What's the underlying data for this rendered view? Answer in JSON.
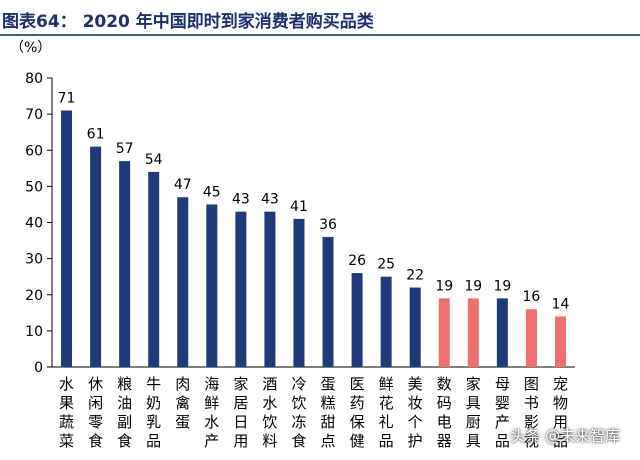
{
  "title": "图表64：  2020 年中国即时到家消费者购买品类",
  "watermark": "头条 @未来智库",
  "chart_data": {
    "type": "bar",
    "ylabel": "（%）",
    "ylim": [
      0,
      80
    ],
    "yticks": [
      0,
      10,
      20,
      30,
      40,
      50,
      60,
      70,
      80
    ],
    "grid": false,
    "legend": "none",
    "categories": [
      "水果蔬菜",
      "休闲零食",
      "粮油副食",
      "牛奶乳品",
      "肉禽蛋",
      "海鲜水产",
      "家居日用",
      "酒水饮料",
      "冷饮冻食",
      "蛋糕甜点",
      "医药保健",
      "鲜花礼品",
      "美妆个护",
      "数码电器",
      "家具厨具",
      "母婴产品",
      "图书影视",
      "宠物用品"
    ],
    "values": [
      71,
      61,
      57,
      54,
      47,
      45,
      43,
      43,
      41,
      36,
      26,
      25,
      22,
      19,
      19,
      19,
      16,
      14
    ],
    "bar_colors": [
      "#1f3a7a",
      "#1f3a7a",
      "#1f3a7a",
      "#1f3a7a",
      "#1f3a7a",
      "#1f3a7a",
      "#1f3a7a",
      "#1f3a7a",
      "#1f3a7a",
      "#1f3a7a",
      "#1f3a7a",
      "#1f3a7a",
      "#1f3a7a",
      "#f07070",
      "#f07070",
      "#1f3a7a",
      "#f07070",
      "#f07070"
    ]
  }
}
